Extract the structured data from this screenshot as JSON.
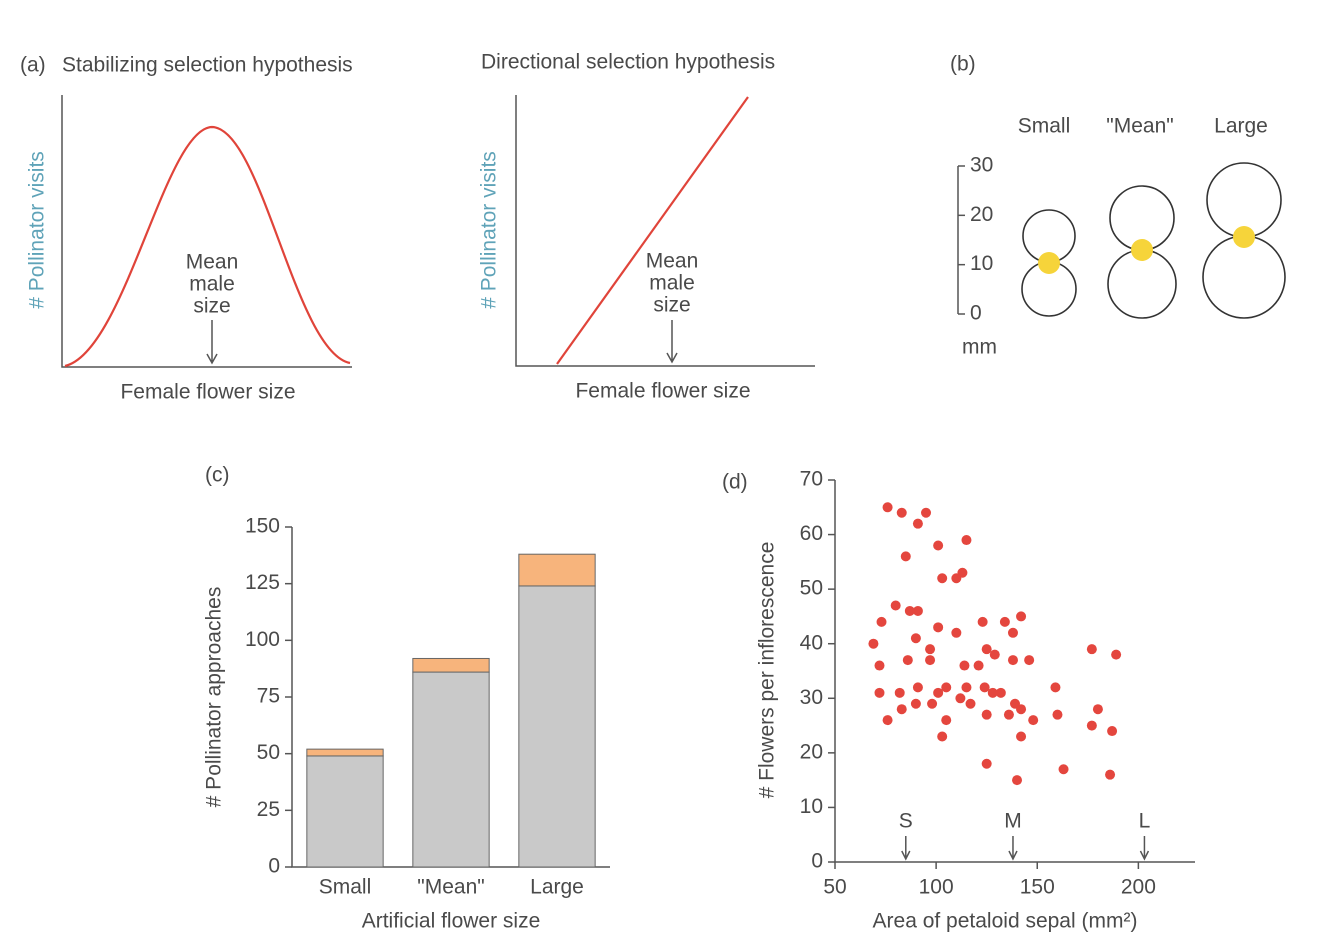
{
  "panel_a": {
    "label": "(a)",
    "stabilizing": {
      "title": "Stabilizing selection hypothesis",
      "y_label": "# Pollinator visits",
      "x_label": "Female flower size",
      "annotation": [
        "Mean",
        "male",
        "size"
      ]
    },
    "directional": {
      "title": "Directional selection hypothesis",
      "y_label": "# Pollinator visits",
      "x_label": "Female flower size",
      "annotation": [
        "Mean",
        "male",
        "size"
      ]
    }
  },
  "panel_b": {
    "label": "(b)",
    "sizes": [
      "Small",
      "\"Mean\"",
      "Large"
    ],
    "ylim": [
      0,
      30
    ],
    "yticks": [
      30,
      20,
      10,
      0
    ],
    "unit": "mm"
  },
  "chart_data": [
    {
      "type": "bar",
      "stacked": true,
      "panel_label": "(c)",
      "categories": [
        "Small",
        "\"Mean\"",
        "Large"
      ],
      "series": [
        {
          "color": "#c9c9c9",
          "values": [
            49,
            86,
            124
          ]
        },
        {
          "color": "#f7b47c",
          "values": [
            3,
            6,
            14
          ]
        }
      ],
      "x_label": "Artificial flower size",
      "y_label": "# Pollinator approaches",
      "ylim": [
        0,
        150
      ],
      "yticks": [
        0,
        25,
        50,
        75,
        100,
        125,
        150
      ]
    },
    {
      "type": "scatter",
      "panel_label": "(d)",
      "color": "#e4463e",
      "x": [
        76,
        83,
        95,
        91,
        101,
        115,
        85,
        103,
        110,
        113,
        80,
        91,
        87,
        101,
        110,
        123,
        134,
        142,
        138,
        73,
        69,
        90,
        97,
        72,
        86,
        97,
        114,
        121,
        125,
        129,
        138,
        146,
        159,
        177,
        189,
        72,
        82,
        91,
        101,
        105,
        115,
        124,
        128,
        132,
        76,
        83,
        90,
        98,
        112,
        117,
        139,
        142,
        136,
        148,
        125,
        105,
        160,
        180,
        177,
        187,
        103,
        142,
        125,
        163,
        140,
        186
      ],
      "y": [
        65,
        64,
        64,
        62,
        58,
        59,
        56,
        52,
        52,
        53,
        47,
        46,
        46,
        43,
        42,
        44,
        44,
        45,
        42,
        44,
        40,
        41,
        39,
        36,
        37,
        37,
        36,
        36,
        39,
        38,
        37,
        37,
        32,
        39,
        38,
        31,
        31,
        32,
        31,
        32,
        32,
        32,
        31,
        31,
        26,
        28,
        29,
        29,
        30,
        29,
        29,
        28,
        27,
        26,
        27,
        26,
        27,
        28,
        25,
        24,
        23,
        23,
        18,
        17,
        15,
        16
      ],
      "x_label": "Area of petaloid sepal (mm²)",
      "y_label": "# Flowers per inflorescence",
      "xlim": [
        50,
        228
      ],
      "ylim": [
        0,
        70
      ],
      "xticks": [
        50,
        100,
        150,
        200
      ],
      "yticks": [
        0,
        10,
        20,
        30,
        40,
        50,
        60,
        70
      ],
      "annotations": [
        {
          "text": "S",
          "x": 85
        },
        {
          "text": "M",
          "x": 138
        },
        {
          "text": "L",
          "x": 203
        }
      ]
    }
  ]
}
